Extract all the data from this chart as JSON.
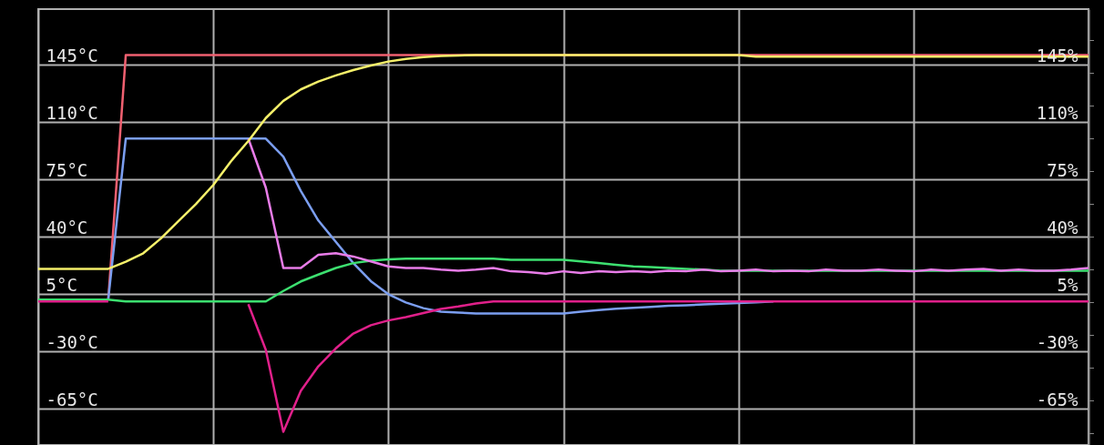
{
  "chart_data": {
    "type": "line",
    "categories": [
      null,
      null,
      null,
      null,
      null,
      null,
      null,
      null,
      null,
      null,
      null,
      null,
      null,
      null,
      null,
      null,
      null,
      null,
      null,
      null,
      null,
      null,
      null,
      null,
      null,
      null,
      null,
      null,
      null,
      null,
      null,
      null,
      null,
      null,
      null,
      null,
      null,
      null,
      null,
      null,
      null,
      null,
      null,
      null,
      null,
      null,
      null,
      null,
      null,
      null,
      null,
      null,
      null,
      null,
      null,
      null,
      null,
      null,
      null,
      null,
      null
    ],
    "series": [
      {
        "color": "#f06070",
        "values": [
          null,
          null,
          null,
          null,
          2,
          151,
          151,
          151,
          151,
          151,
          151,
          151,
          151,
          151,
          151,
          151,
          151,
          151,
          151,
          151,
          151,
          151,
          151,
          151,
          151,
          151,
          151,
          151,
          151,
          151,
          151,
          151,
          151,
          151,
          151,
          151,
          151,
          151,
          151,
          151,
          151,
          151,
          151,
          151,
          151,
          151,
          151,
          151,
          151,
          151,
          151,
          151,
          151,
          151,
          151,
          151,
          151,
          151,
          151,
          151,
          151
        ]
      },
      {
        "color": "#7b9ef0",
        "values": [
          null,
          null,
          null,
          null,
          2,
          100,
          100,
          100,
          100,
          100,
          100,
          100,
          100,
          100,
          89,
          68,
          50,
          37,
          24,
          13,
          5,
          0,
          -3.5,
          -5.6,
          -6.2,
          -6.7,
          -6.7,
          -6.7,
          -6.7,
          -6.7,
          -6.7,
          -5.7,
          -4.7,
          -3.9,
          -3.3,
          -2.7,
          -2.1,
          -1.7,
          -1.2,
          -0.8,
          -0.4,
          0,
          0.6,
          null,
          null,
          null,
          null,
          null,
          null,
          null,
          null,
          null,
          null,
          null,
          null,
          null,
          null,
          null,
          null,
          null,
          null
        ]
      },
      {
        "color": "#3de070",
        "values": [
          1.7,
          1.7,
          1.7,
          1.7,
          1.7,
          0.6,
          0.6,
          0.6,
          0.6,
          0.6,
          0.6,
          0.6,
          0.6,
          0.6,
          7,
          12.8,
          17,
          21,
          24,
          25.5,
          26.3,
          26.7,
          26.7,
          26.7,
          26.7,
          26.7,
          26.7,
          26,
          26,
          26,
          26,
          25,
          24,
          23,
          22,
          21.5,
          21,
          20.5,
          20,
          19.4,
          19.4,
          19.4,
          19.4,
          19.4,
          19.4,
          19.4,
          19.4,
          19.4,
          19.4,
          19.4,
          19.4,
          19.4,
          19.4,
          19.4,
          19.4,
          19.4,
          19.4,
          19.4,
          19.4,
          19.4,
          19.4
        ]
      },
      {
        "color": "#e0208a",
        "values": [
          0.6,
          0.6,
          0.6,
          0.6,
          0.6,
          null,
          null,
          null,
          null,
          null,
          null,
          null,
          -1.1,
          -29,
          -79,
          -54,
          -39,
          -28,
          -19,
          -13.9,
          -11,
          -9,
          -6.5,
          -4,
          -2.5,
          -0.6,
          0.6,
          0.6,
          0.6,
          0.6,
          0.6,
          0.6,
          0.6,
          0.6,
          0.6,
          0.6,
          0.6,
          0.6,
          0.6,
          0.6,
          0.6,
          0.6,
          0.6,
          0.6,
          0.6,
          0.6,
          0.6,
          0.6,
          0.6,
          0.6,
          0.6,
          0.6,
          0.6,
          0.6,
          0.6,
          0.6,
          0.6,
          0.6,
          0.6,
          0.6,
          0.6
        ]
      },
      {
        "color": "#e87ce8",
        "values": [
          null,
          null,
          null,
          null,
          null,
          null,
          null,
          null,
          null,
          null,
          null,
          null,
          100,
          70,
          21,
          21,
          29,
          30,
          28,
          25,
          22,
          21,
          21,
          20,
          19.4,
          20,
          21,
          19,
          18.5,
          17.5,
          19,
          18,
          19,
          18.5,
          19,
          18.5,
          19.4,
          19,
          20,
          19,
          19.4,
          20,
          19,
          19.4,
          19,
          20,
          19.4,
          19.4,
          20,
          19.4,
          19,
          20,
          19.4,
          20,
          20.5,
          19.4,
          20,
          19.4,
          19.4,
          20,
          21
        ]
      },
      {
        "color": "#f5f06a",
        "values": [
          20.5,
          20.5,
          20.5,
          20.5,
          20.5,
          24.8,
          30,
          39,
          49.5,
          60,
          71.7,
          86,
          98.5,
          112.5,
          123,
          130,
          134.8,
          138.5,
          141.8,
          144.6,
          147,
          148.6,
          149.7,
          150.4,
          150.7,
          151,
          151,
          151,
          151,
          151,
          151,
          151,
          151,
          151,
          151,
          151,
          151,
          151,
          151,
          151,
          151,
          150,
          150,
          150,
          150,
          150,
          150,
          150,
          150,
          150,
          150,
          150,
          150,
          150,
          150,
          150,
          150,
          150,
          150,
          150,
          150
        ]
      }
    ],
    "ylim": [
      -87,
      179
    ],
    "yticks": [
      {
        "value": 145,
        "label": "145°C"
      },
      {
        "value": 110,
        "label": "110°C"
      },
      {
        "value": 75,
        "label": "75°C"
      },
      {
        "value": 40,
        "label": "40°C"
      },
      {
        "value": 5,
        "label": "5°C"
      },
      {
        "value": -30,
        "label": "-30°C"
      },
      {
        "value": -65,
        "label": "-65°C"
      }
    ],
    "y2lim": [
      -87,
      179
    ],
    "y2ticks": [
      {
        "value": 145,
        "label": "145%"
      },
      {
        "value": 110,
        "label": "110%"
      },
      {
        "value": 75,
        "label": "75%"
      },
      {
        "value": 40,
        "label": "40%"
      },
      {
        "value": 5,
        "label": "5%"
      },
      {
        "value": -30,
        "label": "-30%"
      },
      {
        "value": -65,
        "label": "-65%"
      }
    ],
    "grid": true,
    "marker": "none",
    "line_style": "solid"
  }
}
